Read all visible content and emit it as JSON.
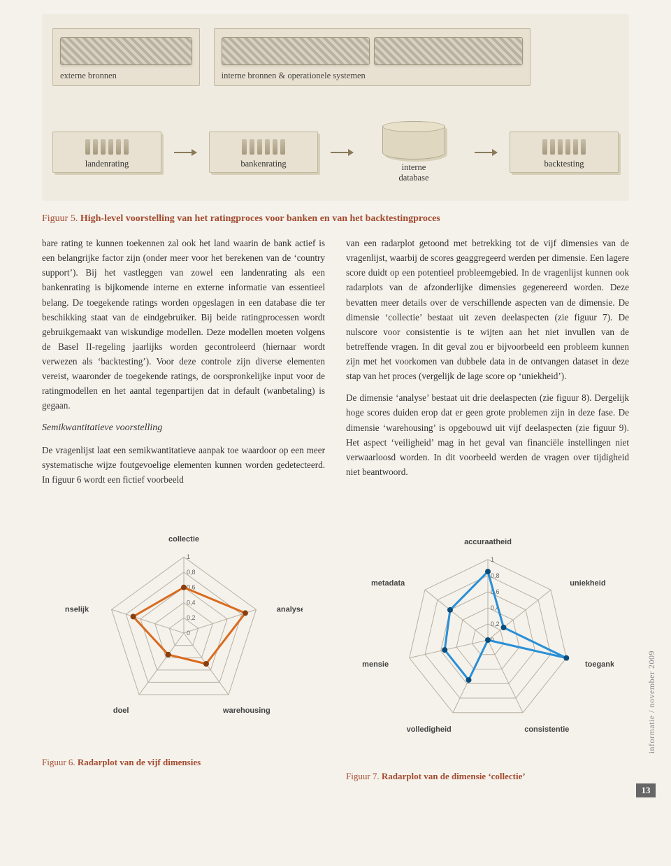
{
  "top_diagram": {
    "source_ext": "externe bronnen",
    "source_int": "interne bronnen & operationele systemen",
    "targets": [
      "landenrating",
      "bankenrating"
    ],
    "db": "interne\ndatabase",
    "backtest": "backtesting",
    "arrow_color": "#8a7a5a",
    "box_fill": "#e8e0d0",
    "box_border": "#c0b8a0",
    "panel_bg": "#f0ebe0"
  },
  "caption5_prefix": "Figuur 5. ",
  "caption5_bold": "High-level voorstelling van het ratingproces voor banken en van het backtestingproces",
  "body_col1_p1": "bare rating te kunnen toekennen zal ook het land waarin de bank actief is een belangrijke factor zijn (onder meer voor het berekenen van de ‘country support’). Bij het vastleggen van zowel een landen­rating als een bankenrating is bijkomende interne en externe informatie van essentieel belang. De toegekende ratings worden opgeslagen in een database die ter beschikking staat van de eindge­bruiker. Bij beide ratingprocessen wordt gebruik­gemaakt van wiskundige modellen. Deze model­len moeten volgens de Basel II-regeling jaarlijks worden gecontroleerd (hiernaar wordt verwezen als ‘backtesting’). Voor deze controle zijn diverse elementen vereist, waaronder de toegekende ratings, de oorspronkelijke input voor de rating­modellen en het aantal tegenpartijen dat in default (wanbetaling) is gegaan.",
  "subhead": "Semikwantitatieve voorstelling",
  "body_col1_p2": "De vragenlijst laat een semikwantitatieve aanpak toe waardoor op een meer systematische wijze foutgevoelige elementen kunnen worden gede­tecteerd. In figuur 6 wordt een fictief voorbeeld",
  "body_col2_p1": "van een radarplot getoond met betrekking tot de vijf dimensies van de vragenlijst, waarbij de scores geaggregeerd werden per dimensie. Een lagere score duidt op een potentieel probleemgebied. In de vragenlijst kunnen ook radarplots van de afzonderlijke dimensies gegenereerd worden. Deze bevatten meer details over de verschillende aspecten van de dimensie. De dimensie ‘collectie’ bestaat uit zeven deelaspecten (zie figuur 7). De nulscore voor consistentie is te wijten aan het niet invullen van de betreffende vragen. In dit geval zou er bijvoorbeeld een probleem kunnen zijn met het voorkomen van dubbele data in de ontvangen dataset in deze stap van het proces (vergelijk de lage score op ‘uniekheid’).",
  "body_col2_p2": "De dimensie ‘analyse’ bestaat uit drie deelaspecten (zie figuur 8). Dergelijk hoge scores duiden erop dat er geen grote problemen zijn in deze fase. De dimensie ‘warehousing’ is opgebouwd uit vijf deelaspecten (zie figuur 9). Het aspect ‘veiligheid’ mag in het geval van financiële instellingen niet verwaarloosd worden. In dit voorbeeld werden de vragen over tijdigheid niet beantwoord.",
  "radar6": {
    "type": "radar",
    "axes": [
      "collectie",
      "analyse",
      "warehousing",
      "doel",
      "menselijk"
    ],
    "values": [
      0.6,
      0.85,
      0.5,
      0.35,
      0.7
    ],
    "rings": [
      0,
      0.2,
      0.4,
      0.6,
      0.8,
      1
    ],
    "ring_labels": [
      "0",
      "0,2",
      "0,4",
      "0,6",
      "0,8",
      "1"
    ],
    "line_color": "#d96b1f",
    "line_width": 3,
    "marker_fill": "#8a3e10",
    "marker_size": 4,
    "grid_color": "#b8b0a0",
    "axis_color": "#b8b0a0",
    "label_color": "#444",
    "label_fontsize": 11,
    "label_fontweight": "bold",
    "tick_fontsize": 9,
    "size": 340
  },
  "radar7": {
    "type": "radar",
    "axes": [
      "accuraatheid",
      "uniekheid",
      "toegankelijkheid",
      "consistentie",
      "volledigheid",
      "tijdsdimensie",
      "metadata"
    ],
    "values": [
      0.85,
      0.25,
      1.0,
      0.0,
      0.55,
      0.55,
      0.6
    ],
    "rings": [
      0,
      0.2,
      0.4,
      0.6,
      0.8,
      1
    ],
    "ring_labels": [
      "0",
      "0,2",
      "0,4",
      "0,6",
      "0,8",
      "1"
    ],
    "line_color": "#2a8fd6",
    "line_width": 3,
    "marker_fill": "#0b4d7a",
    "marker_size": 4,
    "grid_color": "#b8b0a0",
    "axis_color": "#b8b0a0",
    "label_color": "#444",
    "label_fontsize": 11,
    "label_fontweight": "bold",
    "tick_fontsize": 9,
    "size": 360
  },
  "caption6": "Figuur 6. Radarplot van de vijf dimensies",
  "caption7": "Figuur 7. Radarplot van de dimensie ‘collectie’",
  "side_text": "informatie / november 2009",
  "page_number": "13"
}
